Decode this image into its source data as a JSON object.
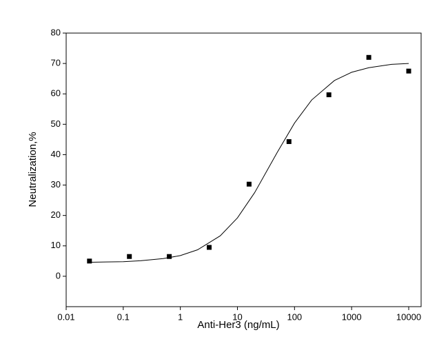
{
  "chart_data": {
    "type": "scatter",
    "x_label": "Anti-Her3 (ng/mL)",
    "y_label": "Neutralization,%",
    "log_x": true,
    "xlim": [
      0.01,
      16500
    ],
    "ylim": [
      -10,
      80
    ],
    "xticks": [
      0.01,
      0.1,
      1,
      10,
      100,
      1000,
      10000
    ],
    "yticks": [
      0,
      10,
      20,
      30,
      40,
      50,
      60,
      70,
      80
    ],
    "series": [
      {
        "kind": "points",
        "color": "#000000",
        "x": [
          0.0256,
          0.128,
          0.64,
          3.2,
          16,
          80,
          400,
          2000,
          10000
        ],
        "values": [
          5,
          6.5,
          6.5,
          9.5,
          30.3,
          44.3,
          59.7,
          72,
          67.5
        ]
      },
      {
        "kind": "curve",
        "color": "#000000",
        "x": [
          0.025,
          0.05,
          0.1,
          0.2,
          0.5,
          1,
          2,
          5,
          10,
          20,
          50,
          100,
          200,
          500,
          1000,
          2000,
          5000,
          10000
        ],
        "values": [
          4.6,
          4.7,
          4.8,
          5.1,
          5.8,
          6.8,
          8.7,
          13.3,
          19.2,
          27.5,
          40.8,
          50.4,
          58.0,
          64.4,
          67.1,
          68.6,
          69.7,
          70.0
        ]
      }
    ]
  }
}
